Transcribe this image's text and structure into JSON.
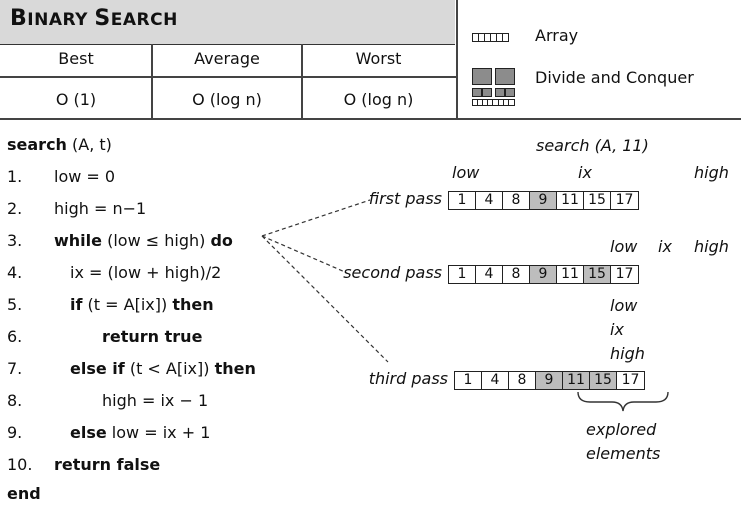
{
  "header": {
    "title_first": "B",
    "title_rest1": "INARY ",
    "title_s": "S",
    "title_rest2": "EARCH"
  },
  "complexity": {
    "columns": [
      "Best",
      "Average",
      "Worst"
    ],
    "values": [
      "O (1)",
      "O (log n)",
      "O (log n)"
    ]
  },
  "legend": {
    "items": [
      {
        "label": "Array",
        "icon": "array-icon"
      },
      {
        "label": "Divide and Conquer",
        "icon": "divide-conquer-icon"
      }
    ]
  },
  "pseudocode": {
    "signature_kw": "search",
    "signature_args": " (A, t)",
    "end_kw": "end",
    "lines": [
      {
        "n": "1.",
        "parts": [
          [
            "",
            "low = 0"
          ]
        ]
      },
      {
        "n": "2.",
        "parts": [
          [
            "",
            "high = n−1"
          ]
        ]
      },
      {
        "n": "3.",
        "parts": [
          [
            "kw",
            "while"
          ],
          [
            "",
            " (low ≤ high) "
          ],
          [
            "kw",
            "do"
          ]
        ]
      },
      {
        "n": "4.",
        "parts": [
          [
            "",
            "ix = (low + high)/2"
          ]
        ]
      },
      {
        "n": "5.",
        "parts": [
          [
            "kw",
            "if"
          ],
          [
            "",
            " (t = A[ix]) "
          ],
          [
            "kw",
            "then"
          ]
        ]
      },
      {
        "n": "6.",
        "parts": [
          [
            "kw",
            "return true"
          ]
        ]
      },
      {
        "n": "7.",
        "parts": [
          [
            "kw",
            "else if"
          ],
          [
            "",
            " (t < A[ix]) "
          ],
          [
            "kw",
            "then"
          ]
        ]
      },
      {
        "n": "8.",
        "parts": [
          [
            "",
            "high = ix − 1"
          ]
        ]
      },
      {
        "n": "9.",
        "parts": [
          [
            "kw",
            "else"
          ],
          [
            "",
            " low = ix + 1"
          ]
        ]
      },
      {
        "n": "10.",
        "parts": [
          [
            "kw",
            "return false"
          ]
        ]
      }
    ]
  },
  "diagram": {
    "call": "search (A, 11)",
    "array": [
      "1",
      "4",
      "8",
      "9",
      "11",
      "15",
      "17"
    ],
    "passes": [
      {
        "label": "first pass",
        "highlight": [
          3
        ]
      },
      {
        "label": "second pass",
        "highlight": [
          3,
          5
        ]
      },
      {
        "label": "third pass",
        "highlight": [
          3,
          4,
          5
        ]
      }
    ],
    "pointers": {
      "low": "low",
      "ix": "ix",
      "high": "high"
    },
    "brace_label_1": "explored",
    "brace_label_2": "elements"
  }
}
